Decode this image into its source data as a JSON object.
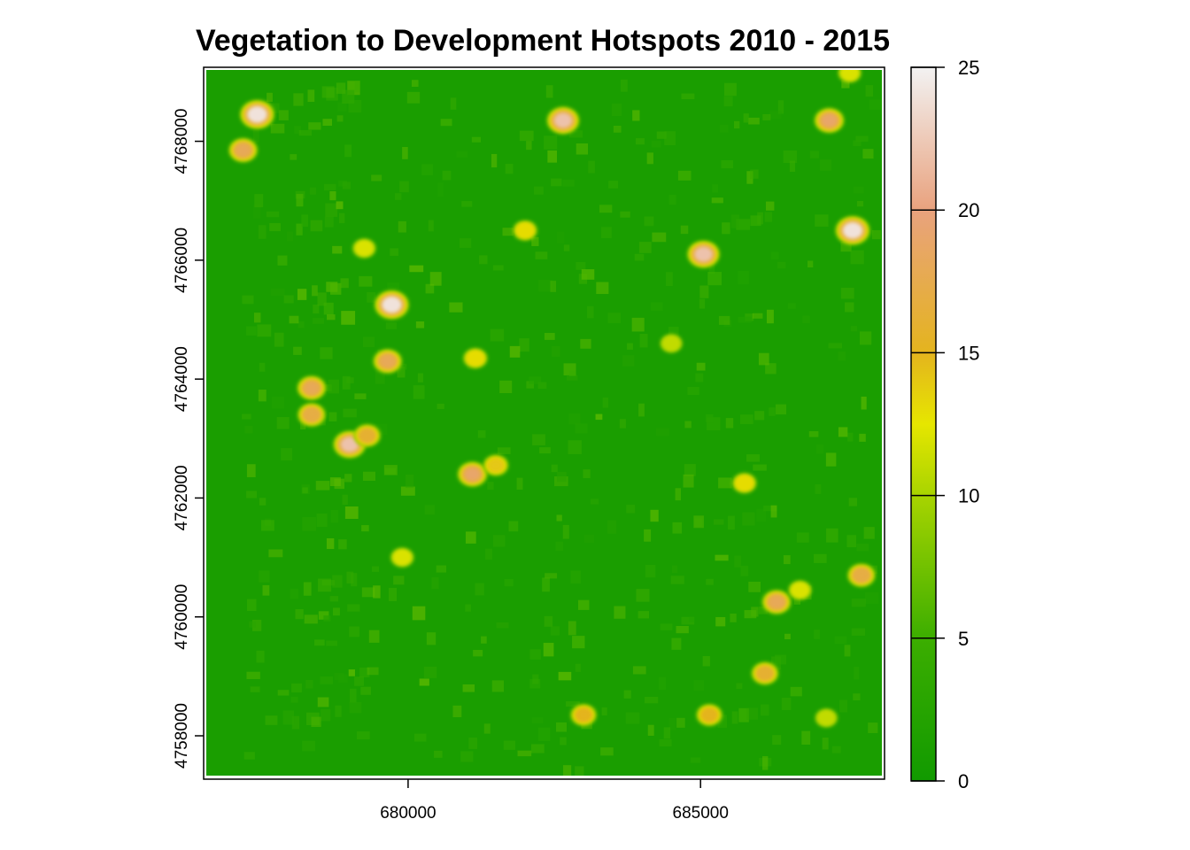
{
  "chart_data": {
    "type": "heatmap",
    "title": "Vegetation to Development Hotspots 2010 - 2015",
    "xlabel": "",
    "ylabel": "",
    "xlim": [
      676550,
      688100
    ],
    "ylim": [
      4757330,
      4769200
    ],
    "x_ticks": [
      680000,
      685000
    ],
    "x_tick_labels": [
      "680000",
      "685000"
    ],
    "y_ticks": [
      4758000,
      4760000,
      4762000,
      4764000,
      4766000,
      4768000
    ],
    "y_tick_labels": [
      "4758000",
      "4760000",
      "4762000",
      "4764000",
      "4766000",
      "4768000"
    ],
    "color_scale": {
      "min": 0,
      "max": 25,
      "ticks": [
        0,
        5,
        10,
        15,
        20,
        25
      ],
      "tick_labels": [
        "0",
        "5",
        "10",
        "15",
        "20",
        "25"
      ],
      "stops": [
        {
          "value": 0,
          "color": "#119a00"
        },
        {
          "value": 5,
          "color": "#3cae00"
        },
        {
          "value": 10,
          "color": "#a8d400"
        },
        {
          "value": 12.5,
          "color": "#e6e600"
        },
        {
          "value": 15,
          "color": "#e4b41e"
        },
        {
          "value": 20,
          "color": "#e9a27e"
        },
        {
          "value": 25,
          "color": "#f2f2f2"
        }
      ]
    },
    "background_value": 1,
    "legend": "right",
    "hotspots": [
      {
        "x": 677420,
        "y": 4768450,
        "value": 24
      },
      {
        "x": 677180,
        "y": 4767850,
        "value": 18
      },
      {
        "x": 678350,
        "y": 4763850,
        "value": 18
      },
      {
        "x": 678350,
        "y": 4763400,
        "value": 17
      },
      {
        "x": 679000,
        "y": 4762900,
        "value": 22
      },
      {
        "x": 679300,
        "y": 4763050,
        "value": 16
      },
      {
        "x": 679720,
        "y": 4765250,
        "value": 24
      },
      {
        "x": 679650,
        "y": 4764300,
        "value": 18
      },
      {
        "x": 681100,
        "y": 4762400,
        "value": 19
      },
      {
        "x": 681500,
        "y": 4762550,
        "value": 14
      },
      {
        "x": 682650,
        "y": 4768350,
        "value": 22
      },
      {
        "x": 682000,
        "y": 4766500,
        "value": 13
      },
      {
        "x": 685050,
        "y": 4766100,
        "value": 22
      },
      {
        "x": 687200,
        "y": 4768350,
        "value": 19
      },
      {
        "x": 687600,
        "y": 4766500,
        "value": 24
      },
      {
        "x": 687550,
        "y": 4769150,
        "value": 12
      },
      {
        "x": 681150,
        "y": 4764350,
        "value": 13
      },
      {
        "x": 679250,
        "y": 4766200,
        "value": 12
      },
      {
        "x": 685750,
        "y": 4762250,
        "value": 13
      },
      {
        "x": 686300,
        "y": 4760250,
        "value": 18
      },
      {
        "x": 686700,
        "y": 4760450,
        "value": 12
      },
      {
        "x": 686100,
        "y": 4759050,
        "value": 16
      },
      {
        "x": 687750,
        "y": 4760700,
        "value": 17
      },
      {
        "x": 683000,
        "y": 4758350,
        "value": 15
      },
      {
        "x": 685150,
        "y": 4758350,
        "value": 15
      },
      {
        "x": 679900,
        "y": 4761000,
        "value": 12
      },
      {
        "x": 684500,
        "y": 4764600,
        "value": 11
      },
      {
        "x": 687150,
        "y": 4758300,
        "value": 11
      }
    ]
  }
}
